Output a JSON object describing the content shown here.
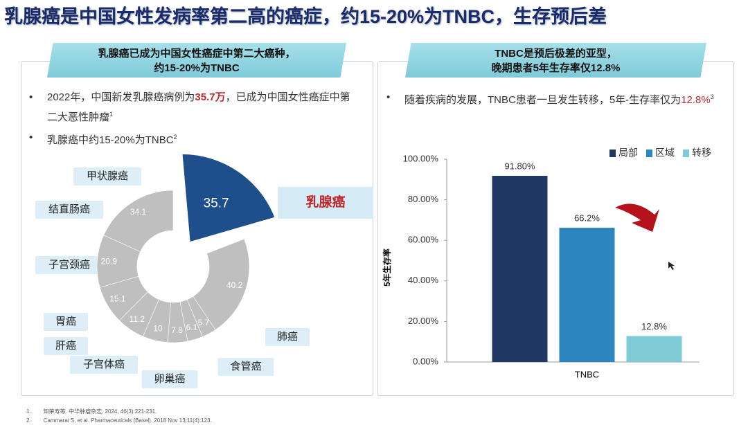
{
  "title": "乳腺癌是中国女性发病率第二高的癌症，约15-20%为TNBC，生存预后差",
  "panels": [
    {
      "header": [
        "乳腺癌已成为中国女性癌症中第二大癌种，",
        "约15-20%为TNBC"
      ],
      "bullets": [
        [
          {
            "text": "2022年，中国新发乳腺癌病例为",
            "style": "normal"
          },
          {
            "text": "35.7万",
            "style": "highlight"
          },
          {
            "text": "，已成为中国女性癌症中第二大恶性肿瘤",
            "style": "normal"
          },
          {
            "text": "1",
            "style": "sup"
          }
        ],
        [
          {
            "text": "乳腺癌中约15-20%为TNBC",
            "style": "normal"
          },
          {
            "text": "2",
            "style": "sup"
          }
        ]
      ]
    },
    {
      "header": [
        "TNBC是预后极差的亚型，",
        "晚期患者5年生存率仅12.8%"
      ],
      "bullets": [
        [
          {
            "text": "随着疾病的发展，TNBC患者一旦发生转移，5年-生存率仅为",
            "style": "normal"
          },
          {
            "text": "12.8%",
            "style": "highlight"
          },
          {
            "text": "3",
            "style": "sup"
          }
        ]
      ]
    }
  ],
  "chart_data": [
    {
      "type": "pie",
      "donut": true,
      "categories": [
        "乳腺癌",
        "肺癌",
        "食管癌",
        "卵巢癌",
        "子宫体癌",
        "肝癌",
        "胃癌",
        "子宫颈癌",
        "结直肠癌",
        "甲状腺癌"
      ],
      "values": [
        35.7,
        40.2,
        5.7,
        6.1,
        7.8,
        10,
        11.2,
        15.1,
        20.9,
        34.1
      ],
      "colors": [
        "#1f4e8c",
        "#bfbfbf",
        "#bfbfbf",
        "#bfbfbf",
        "#bfbfbf",
        "#bfbfbf",
        "#bfbfbf",
        "#bfbfbf",
        "#bfbfbf",
        "#bfbfbf"
      ],
      "exploded": [
        0
      ]
    },
    {
      "type": "bar",
      "categories": [
        "TNBC"
      ],
      "series": [
        {
          "name": "局部",
          "color": "#1f3864",
          "values": [
            91.8
          ],
          "value_labels": [
            "91.80%"
          ]
        },
        {
          "name": "区域",
          "color": "#2e86c1",
          "values": [
            66.2
          ],
          "value_labels": [
            "66.2%"
          ]
        },
        {
          "name": "转移",
          "color": "#7ecbd6",
          "values": [
            12.8
          ],
          "value_labels": [
            "12.8%"
          ]
        }
      ],
      "y_label": "5年生存率",
      "ylim": [
        0,
        100
      ],
      "yticks": [
        {
          "value": 0,
          "label": "0.00%"
        },
        {
          "value": 20,
          "label": "20.00%"
        },
        {
          "value": 40,
          "label": "40.00%"
        },
        {
          "value": 60,
          "label": "60.00%"
        },
        {
          "value": 80,
          "label": "80.00%"
        },
        {
          "value": 100,
          "label": "100.00%"
        }
      ],
      "legend": "top-right",
      "grid": false
    }
  ],
  "references": [
    "知荣寿等. 中华肿瘤杂志, 2024, 46(3):221-231.",
    "Cammarai S, et al. Pharmaceuticals (Basel). 2018 Nov 13;11(4):123."
  ]
}
